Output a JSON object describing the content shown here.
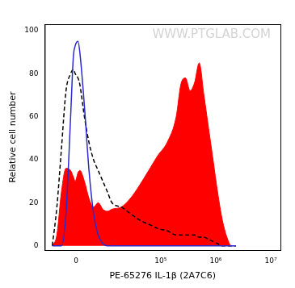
{
  "chart_data": {
    "type": "histogram_overlay",
    "x_label": "PE-65276 IL-1β (2A7C6)",
    "y_label": "Relative cell number",
    "watermark": "WWW.PTGLAB.COM",
    "xlim": [
      -10000,
      15000000
    ],
    "xticks": [
      {
        "value": 0,
        "label": "0"
      },
      {
        "value": 100000,
        "label": "10⁵"
      },
      {
        "value": 1000000,
        "label": "10⁶"
      },
      {
        "value": 10000000,
        "label": "10⁷"
      }
    ],
    "ylim": [
      -2,
      103
    ],
    "yticks": [
      0,
      20,
      40,
      60,
      80,
      100
    ],
    "grid": false,
    "x": [
      -6800,
      -5200,
      -3800,
      -2530,
      -1350,
      -670,
      -220,
      450,
      900,
      2050,
      3280,
      4620,
      6150,
      7920,
      9980,
      12350,
      18700,
      27700,
      40800,
      60300,
      88700,
      130500,
      191000,
      232000,
      282000,
      342000,
      414000,
      500000,
      610000,
      737000,
      893000,
      1080000,
      1316000,
      1595000,
      1926000,
      2332000
    ],
    "series": [
      {
        "type": "area",
        "color": "#ff0000",
        "line_style": "solid",
        "values": [
          0,
          5,
          25,
          36,
          35,
          32,
          30,
          34,
          35,
          30,
          22,
          18,
          20,
          17,
          16,
          17,
          18,
          22,
          28,
          35,
          42,
          48,
          60,
          75,
          78,
          72,
          76,
          85,
          70,
          55,
          40,
          25,
          12,
          4,
          0,
          0
        ]
      },
      {
        "type": "line",
        "color": "#2a2ad0",
        "line_style": "solid",
        "values": [
          0,
          0,
          0,
          15,
          60,
          88,
          93,
          95,
          90,
          65,
          35,
          15,
          5,
          1,
          0,
          0,
          0,
          0,
          0,
          0,
          0,
          0,
          0,
          0,
          0,
          0,
          0,
          0,
          0,
          0,
          0,
          0,
          0,
          0,
          0,
          0
        ]
      },
      {
        "type": "line",
        "color": "#000000",
        "line_style": "dashed",
        "values": [
          0,
          18,
          45,
          72,
          80,
          82,
          80,
          78,
          75,
          60,
          48,
          40,
          35,
          30,
          25,
          20,
          18,
          15,
          12,
          10,
          8,
          7,
          5,
          5,
          5,
          5,
          5,
          4,
          4,
          3,
          2,
          1,
          0,
          0,
          0,
          0
        ]
      }
    ]
  }
}
